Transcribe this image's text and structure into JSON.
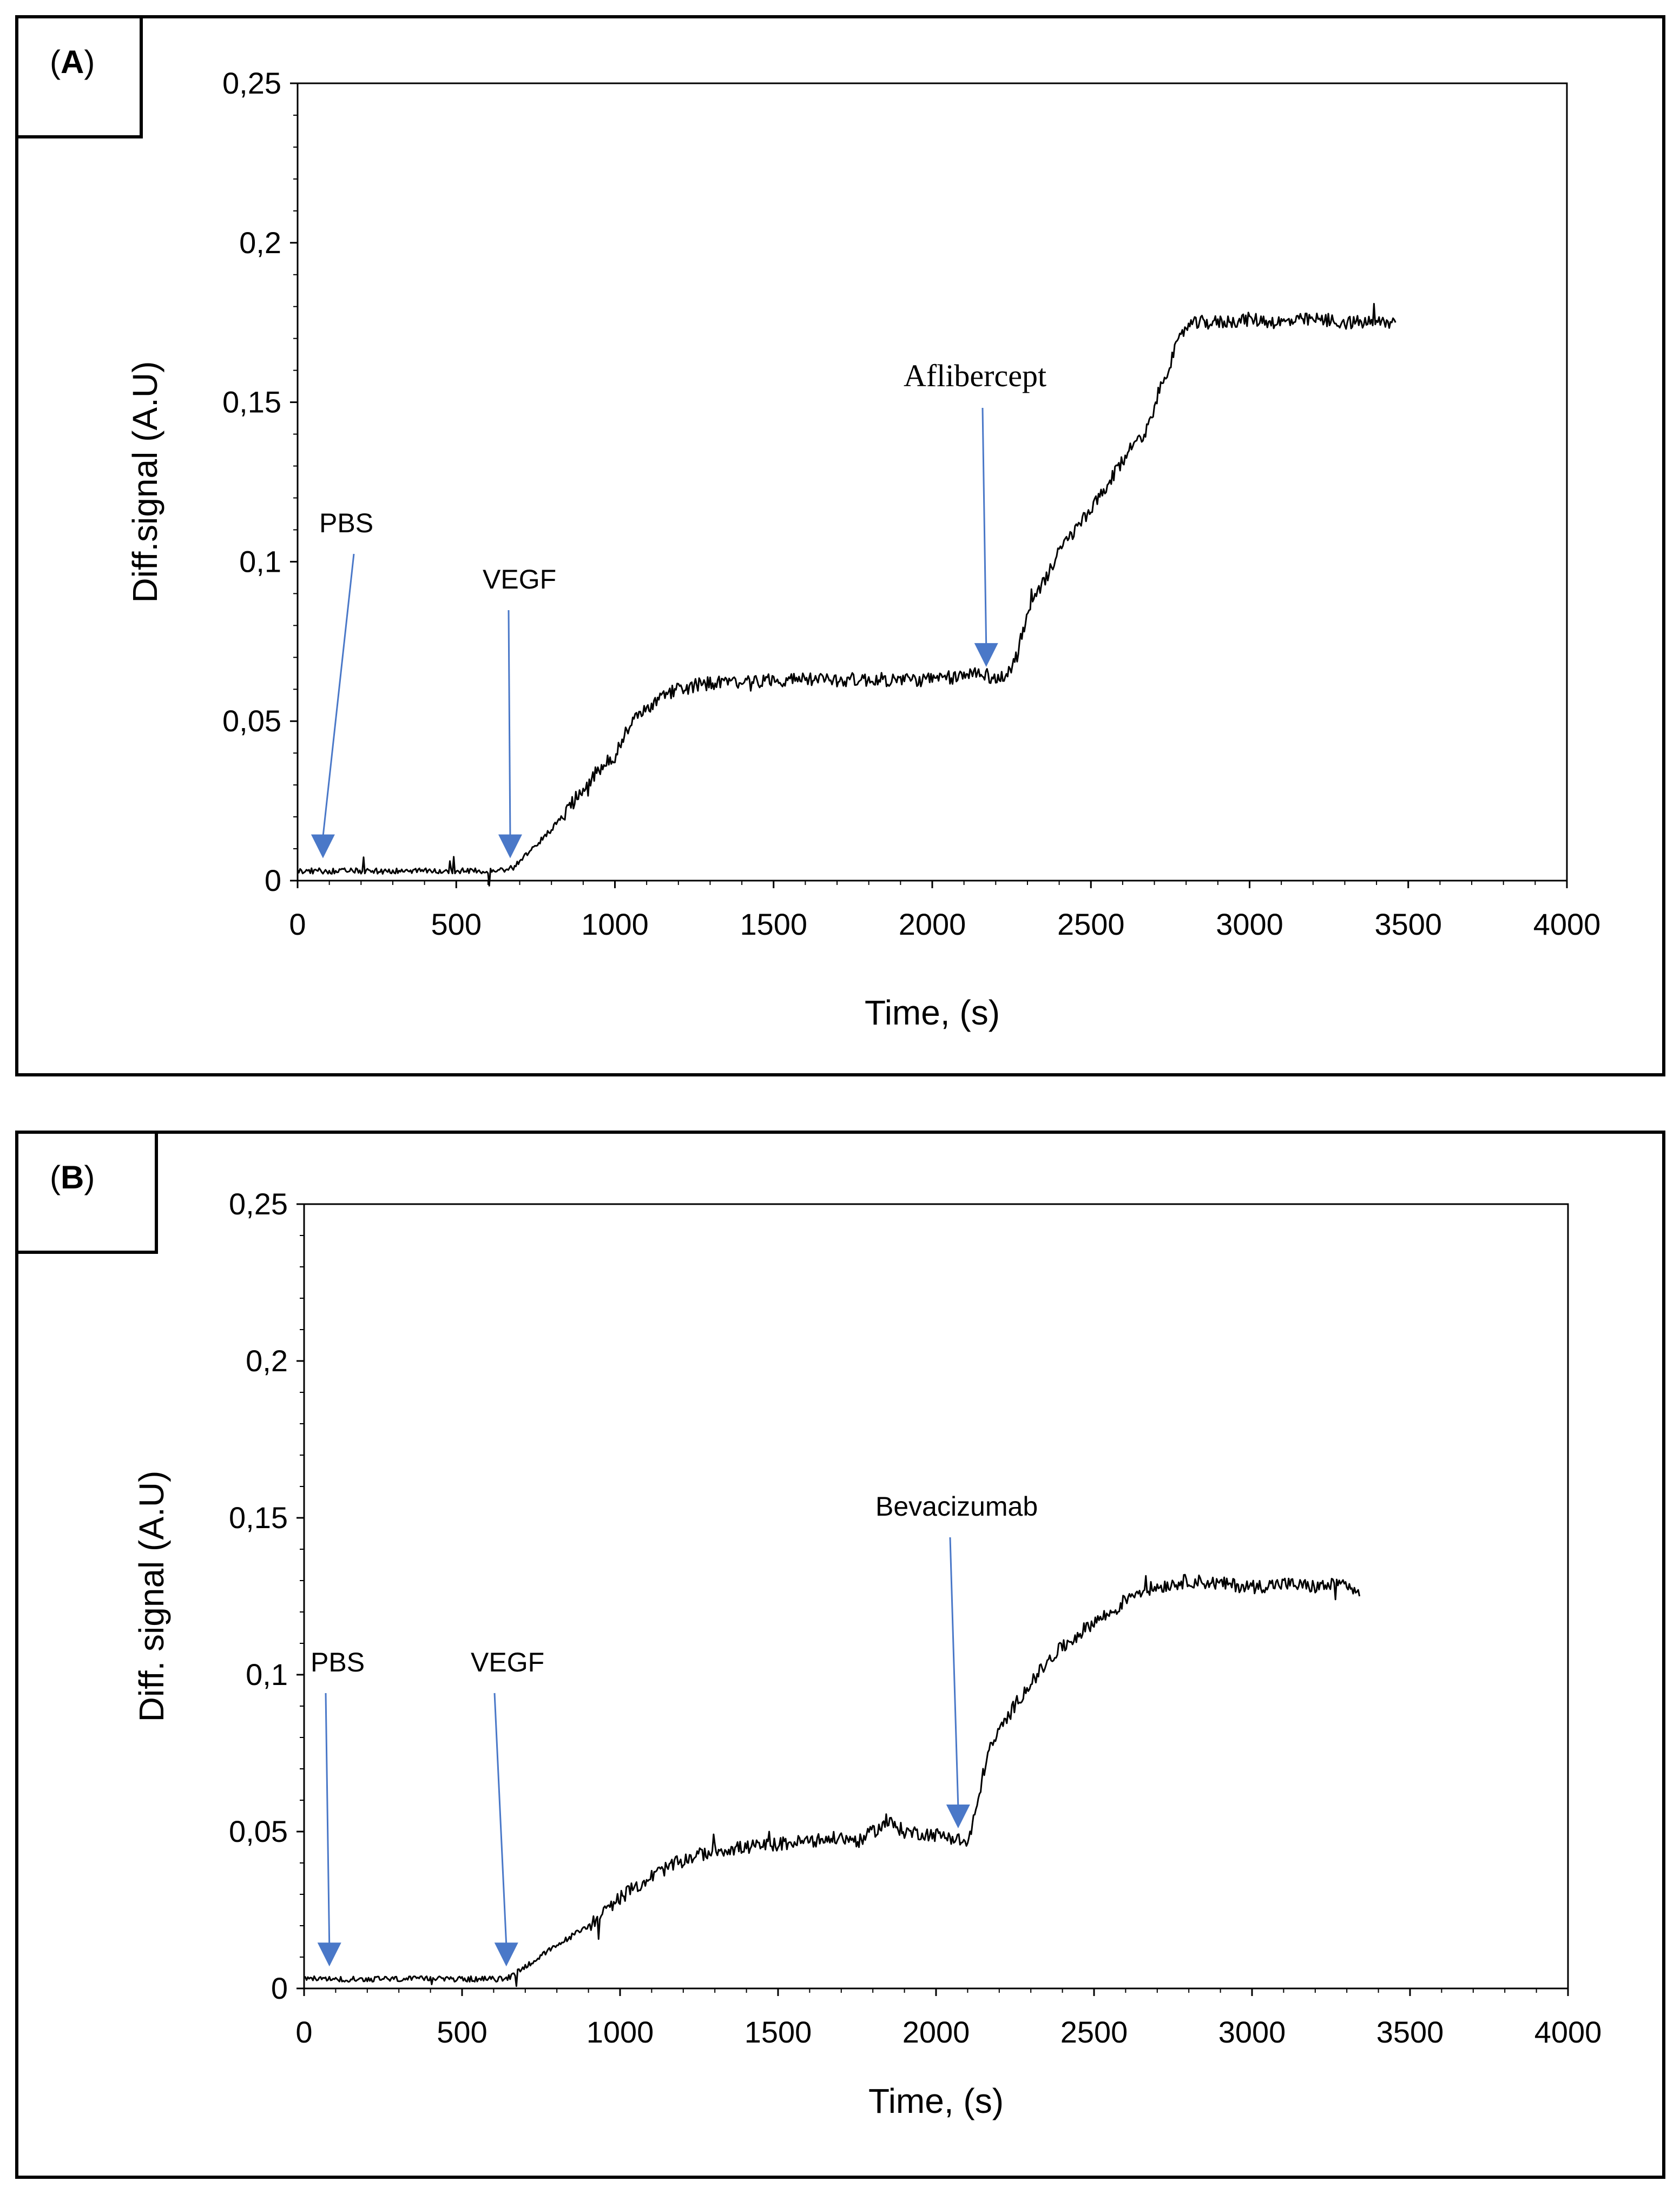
{
  "chart_data": [
    {
      "panel": "(A)",
      "panel_letter": "A",
      "type": "line",
      "title": "",
      "xlabel": "Time, (s)",
      "ylabel": "Diff.signal (A.U)",
      "xlim": [
        0,
        4000
      ],
      "ylim": [
        0,
        0.25
      ],
      "xticks": [
        0,
        500,
        1000,
        1500,
        2000,
        2500,
        3000,
        3500,
        4000
      ],
      "xtick_labels": [
        "0",
        "500",
        "1000",
        "1500",
        "2000",
        "2500",
        "3000",
        "3500",
        "4000"
      ],
      "yticks": [
        0,
        0.05,
        0.1,
        0.15,
        0.2,
        0.25
      ],
      "ytick_labels": [
        "0",
        "0,05",
        "0,1",
        "0,15",
        "0,2",
        "0,25"
      ],
      "grid": false,
      "series": [
        {
          "name": "Diff.signal",
          "x": [
            0,
            100,
            200,
            300,
            400,
            500,
            600,
            680,
            720,
            760,
            800,
            850,
            900,
            950,
            1000,
            1030,
            1060,
            1100,
            1150,
            1200,
            1250,
            1300,
            1400,
            1500,
            1600,
            1700,
            1800,
            1900,
            2000,
            2100,
            2150,
            2180,
            2200,
            2230,
            2260,
            2290,
            2320,
            2360,
            2400,
            2450,
            2500,
            2560,
            2620,
            2680,
            2720,
            2760,
            2800,
            2850,
            2900,
            3000,
            3100,
            3200,
            3300,
            3400,
            3460
          ],
          "y": [
            0.003,
            0.003,
            0.003,
            0.003,
            0.003,
            0.003,
            0.003,
            0.004,
            0.008,
            0.012,
            0.016,
            0.022,
            0.029,
            0.035,
            0.039,
            0.046,
            0.05,
            0.054,
            0.058,
            0.06,
            0.061,
            0.062,
            0.062,
            0.063,
            0.063,
            0.063,
            0.063,
            0.063,
            0.063,
            0.064,
            0.066,
            0.064,
            0.063,
            0.064,
            0.069,
            0.08,
            0.088,
            0.095,
            0.103,
            0.11,
            0.116,
            0.125,
            0.135,
            0.142,
            0.155,
            0.165,
            0.174,
            0.175,
            0.175,
            0.176,
            0.175,
            0.176,
            0.175,
            0.175,
            0.175
          ]
        }
      ],
      "annotations": [
        {
          "text": "PBS",
          "x": 80,
          "y": 0.006
        },
        {
          "text": "VEGF",
          "x": 670,
          "y": 0.006
        },
        {
          "text": "Aflibercept",
          "x": 2170,
          "y": 0.066
        }
      ]
    },
    {
      "panel": "(B)",
      "panel_letter": "B",
      "type": "line",
      "title": "",
      "xlabel": "Time, (s)",
      "ylabel": "Diff. signal (A.U)",
      "xlim": [
        0,
        4000
      ],
      "ylim": [
        0,
        0.25
      ],
      "xticks": [
        0,
        500,
        1000,
        1500,
        2000,
        2500,
        3000,
        3500,
        4000
      ],
      "xtick_labels": [
        "0",
        "500",
        "1000",
        "1500",
        "2000",
        "2500",
        "3000",
        "3500",
        "4000"
      ],
      "yticks": [
        0,
        0.05,
        0.1,
        0.15,
        0.2,
        0.25
      ],
      "ytick_labels": [
        "0",
        "0,05",
        "0,1",
        "0,15",
        "0,2",
        "0,25"
      ],
      "grid": false,
      "series": [
        {
          "name": "Diff. signal",
          "x": [
            0,
            100,
            200,
            300,
            400,
            500,
            600,
            640,
            700,
            760,
            820,
            900,
            960,
            1000,
            1060,
            1120,
            1200,
            1300,
            1400,
            1500,
            1600,
            1700,
            1760,
            1800,
            1850,
            1900,
            2000,
            2060,
            2100,
            2130,
            2160,
            2200,
            2260,
            2320,
            2380,
            2440,
            2500,
            2560,
            2620,
            2700,
            2800,
            2900,
            3000,
            3100,
            3200,
            3300,
            3340
          ],
          "y": [
            0.003,
            0.003,
            0.003,
            0.003,
            0.003,
            0.003,
            0.003,
            0.003,
            0.007,
            0.011,
            0.015,
            0.02,
            0.025,
            0.029,
            0.033,
            0.037,
            0.041,
            0.044,
            0.045,
            0.046,
            0.047,
            0.048,
            0.047,
            0.05,
            0.053,
            0.05,
            0.049,
            0.048,
            0.046,
            0.058,
            0.074,
            0.082,
            0.092,
            0.1,
            0.107,
            0.112,
            0.117,
            0.12,
            0.126,
            0.128,
            0.13,
            0.129,
            0.128,
            0.129,
            0.128,
            0.129,
            0.125
          ]
        }
      ],
      "annotations": [
        {
          "text": "PBS",
          "x": 80,
          "y": 0.006
        },
        {
          "text": "VEGF",
          "x": 640,
          "y": 0.006
        },
        {
          "text": "Bevacizumab",
          "x": 2070,
          "y": 0.05
        }
      ]
    }
  ]
}
